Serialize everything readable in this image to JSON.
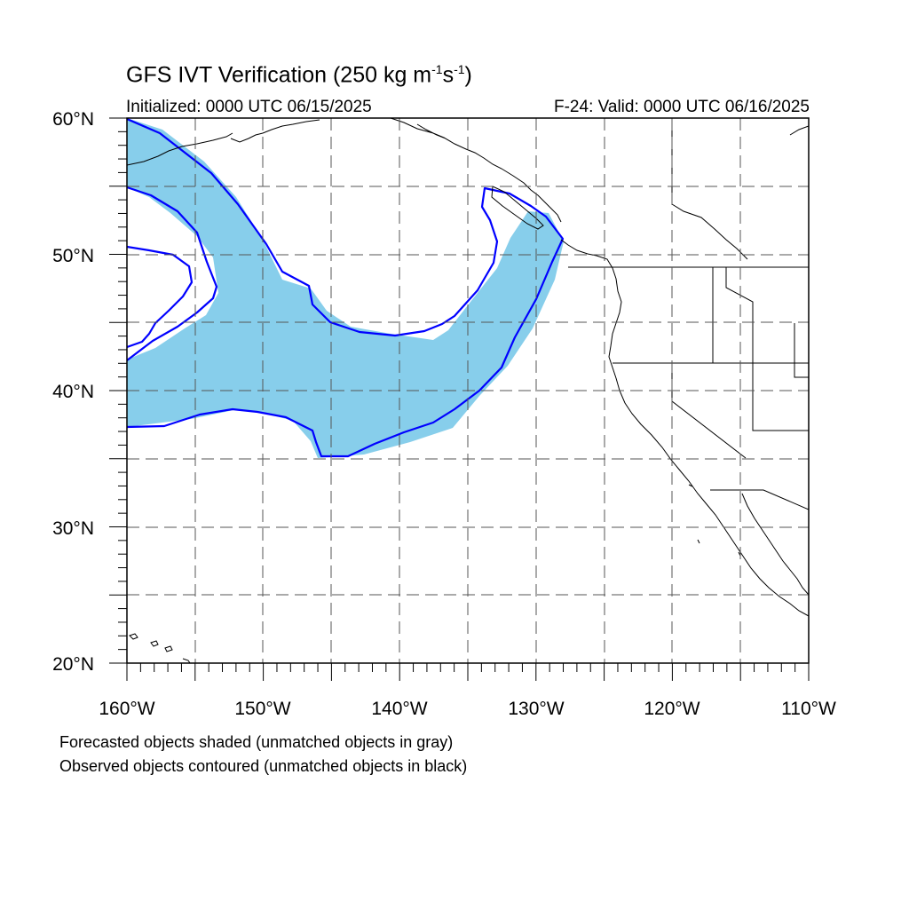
{
  "title": {
    "main": "GFS IVT Verification (250 kg m",
    "sup1": "-1",
    "mid": "s",
    "sup2": "-1",
    "end": ")"
  },
  "subtitle": {
    "initialized": "Initialized: 0000 UTC 06/15/2025",
    "valid": "F-24: Valid: 0000 UTC 06/16/2025"
  },
  "axes": {
    "latitude_labels": [
      "60°N",
      "50°N",
      "40°N",
      "30°N",
      "20°N"
    ],
    "longitude_labels": [
      "160°W",
      "150°W",
      "140°W",
      "130°W",
      "120°W",
      "110°W"
    ]
  },
  "legend": {
    "forecast": "Forecasted objects shaded (unmatched objects in gray)",
    "observed": "Observed objects contoured (unmatched objects in black)"
  },
  "colors": {
    "forecast_fill": "#87ceeb",
    "observed_contour": "#0000ff",
    "coastline": "#000000",
    "grid": "#555555"
  }
}
